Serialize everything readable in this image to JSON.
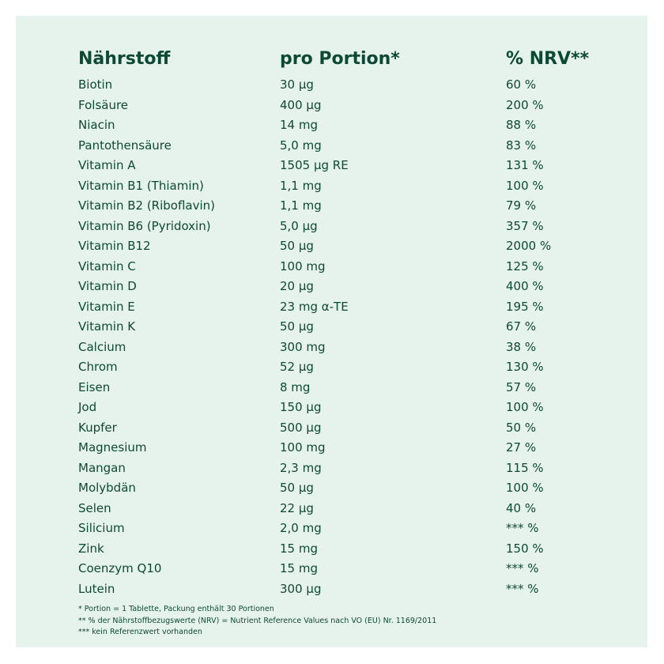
{
  "table": {
    "headers": [
      "Nährstoff",
      "pro Portion*",
      "% NRV**"
    ],
    "rows": [
      [
        "Biotin",
        "30 µg",
        "60 %"
      ],
      [
        "Folsäure",
        "400 µg",
        "200 %"
      ],
      [
        "Niacin",
        "14 mg",
        "88 %"
      ],
      [
        "Pantothensäure",
        "5,0 mg",
        "83 %"
      ],
      [
        "Vitamin A",
        "1505 µg RE",
        "131 %"
      ],
      [
        "Vitamin B1 (Thiamin)",
        "1,1 mg",
        "100 %"
      ],
      [
        "Vitamin B2 (Riboflavin)",
        "1,1 mg",
        "79 %"
      ],
      [
        "Vitamin B6 (Pyridoxin)",
        "5,0 µg",
        "357 %"
      ],
      [
        "Vitamin B12",
        "50 µg",
        "2000 %"
      ],
      [
        "Vitamin C",
        "100 mg",
        "125 %"
      ],
      [
        "Vitamin D",
        "20 µg",
        "400 %"
      ],
      [
        "Vitamin E",
        "23 mg α-TE",
        "195 %"
      ],
      [
        "Vitamin K",
        "50 µg",
        "67 %"
      ],
      [
        "Calcium",
        "300 mg",
        "38 %"
      ],
      [
        "Chrom",
        "52 µg",
        "130 %"
      ],
      [
        "Eisen",
        "8 mg",
        "57 %"
      ],
      [
        "Jod",
        "150 µg",
        "100 %"
      ],
      [
        "Kupfer",
        "500 µg",
        "50 %"
      ],
      [
        "Magnesium",
        "100 mg",
        "27 %"
      ],
      [
        "Mangan",
        "2,3 mg",
        "115 %"
      ],
      [
        "Molybdän",
        "50 µg",
        "100 %"
      ],
      [
        "Selen",
        "22 µg",
        "40 %"
      ],
      [
        "Silicium",
        "2,0 mg",
        "*** %"
      ],
      [
        "Zink",
        "15 mg",
        "150 %"
      ],
      [
        "Coenzym Q10",
        "15 mg",
        "*** %"
      ],
      [
        "Lutein",
        "300 µg",
        "*** %"
      ]
    ]
  },
  "footnotes": [
    "* Portion = 1 Tablette, Packung enthält 30 Portionen",
    "** % der Nährstoffbezugswerte (NRV) = Nutrient Reference Values nach VO (EU) Nr. 1169/2011",
    "*** kein Referenzwert vorhanden"
  ],
  "colors": {
    "background": "#e6f2ec",
    "text": "#0d4a35"
  }
}
